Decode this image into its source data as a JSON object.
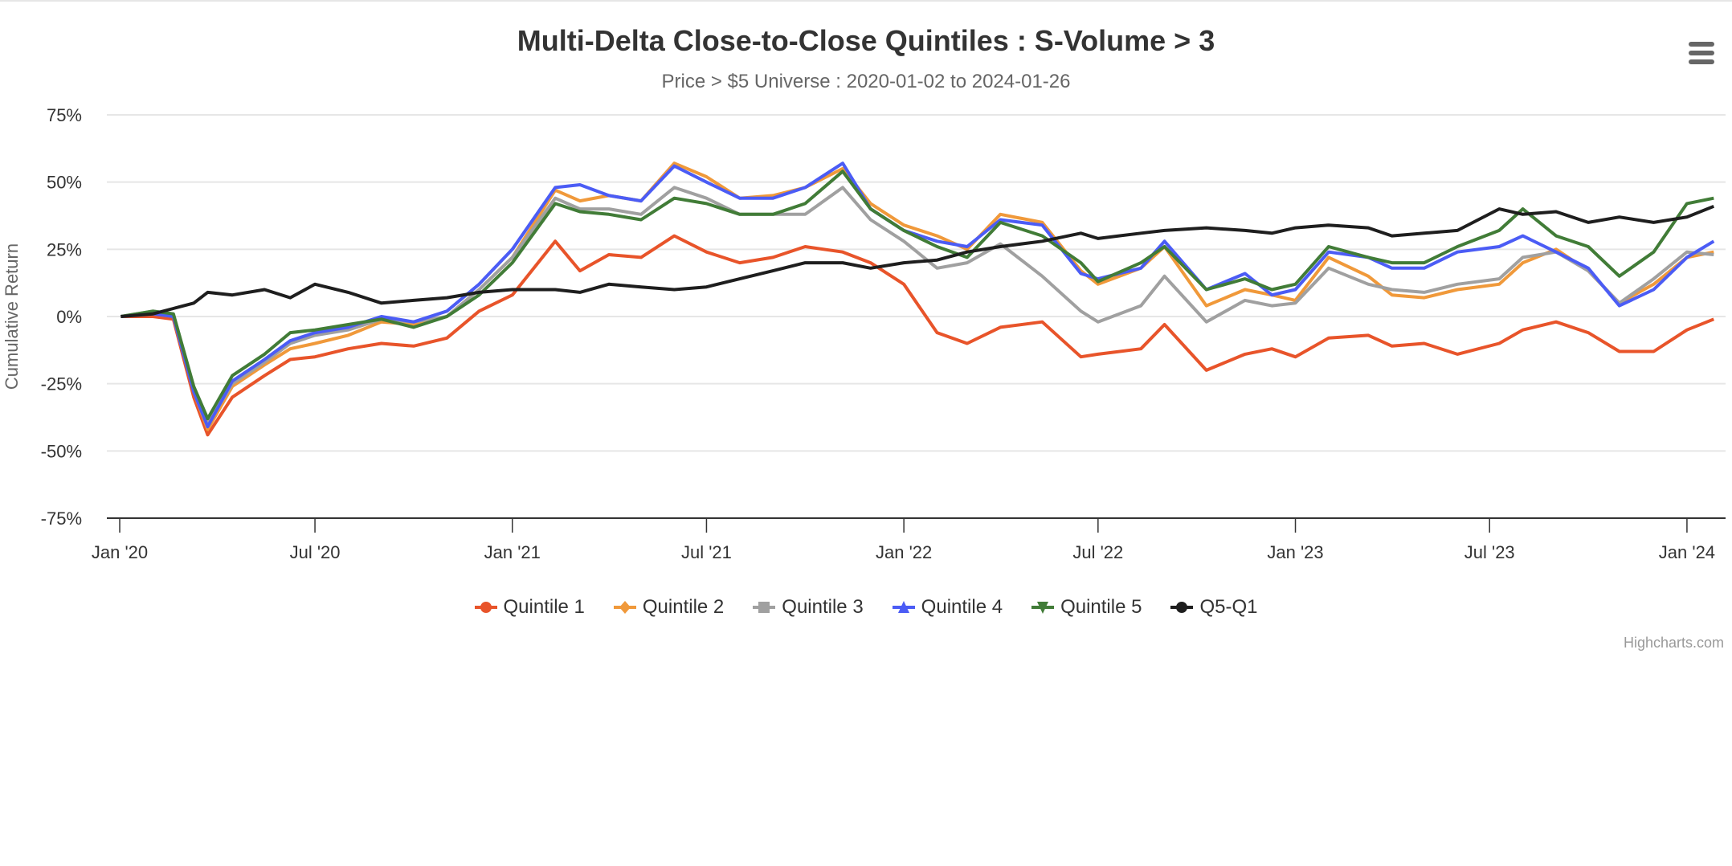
{
  "chart_data": {
    "type": "line",
    "title": "Multi-Delta Close-to-Close Quintiles : S-Volume > 3",
    "subtitle": "Price > $5 Universe : 2020-01-02 to 2024-01-26",
    "xlabel": "",
    "ylabel": "Cumulative Return",
    "ylim": [
      -75,
      75
    ],
    "yticks": [
      "75%",
      "50%",
      "25%",
      "0%",
      "-25%",
      "-50%",
      "-75%"
    ],
    "ytick_values": [
      75,
      50,
      25,
      0,
      -25,
      -50,
      -75
    ],
    "xticks": [
      "Jan '20",
      "Jul '20",
      "Jan '21",
      "Jul '21",
      "Jan '22",
      "Jul '22",
      "Jan '23",
      "Jul '23",
      "Jan '24"
    ],
    "xtick_dates": [
      "2020-01-01",
      "2020-07-01",
      "2021-01-01",
      "2021-07-01",
      "2022-01-01",
      "2022-07-01",
      "2023-01-01",
      "2023-07-01",
      "2024-01-01"
    ],
    "xlim": [
      "2019-12-20",
      "2024-02-06"
    ],
    "grid": true,
    "legend": "bottom-center",
    "x": [
      "2020-01-02",
      "2020-02-01",
      "2020-02-20",
      "2020-03-10",
      "2020-03-23",
      "2020-04-15",
      "2020-05-15",
      "2020-06-08",
      "2020-07-01",
      "2020-08-01",
      "2020-09-01",
      "2020-10-01",
      "2020-11-01",
      "2020-12-01",
      "2021-01-01",
      "2021-02-10",
      "2021-03-05",
      "2021-04-01",
      "2021-05-01",
      "2021-06-01",
      "2021-07-01",
      "2021-08-01",
      "2021-09-01",
      "2021-10-01",
      "2021-11-05",
      "2021-12-01",
      "2022-01-01",
      "2022-02-01",
      "2022-03-01",
      "2022-04-01",
      "2022-05-10",
      "2022-06-15",
      "2022-07-01",
      "2022-08-10",
      "2022-09-01",
      "2022-10-10",
      "2022-11-15",
      "2022-12-10",
      "2023-01-01",
      "2023-02-01",
      "2023-03-10",
      "2023-04-01",
      "2023-05-01",
      "2023-06-01",
      "2023-07-10",
      "2023-08-01",
      "2023-09-01",
      "2023-10-01",
      "2023-10-30",
      "2023-12-01",
      "2024-01-01",
      "2024-01-26"
    ],
    "series": [
      {
        "name": "Quintile 1",
        "color": "#e8542a",
        "values": [
          0,
          0,
          -1,
          -30,
          -44,
          -30,
          -22,
          -16,
          -15,
          -12,
          -10,
          -11,
          -8,
          2,
          8,
          28,
          17,
          23,
          22,
          30,
          24,
          20,
          22,
          26,
          24,
          20,
          12,
          -6,
          -10,
          -4,
          -2,
          -15,
          -14,
          -12,
          -3,
          -20,
          -14,
          -12,
          -15,
          -8,
          -7,
          -11,
          -10,
          -14,
          -10,
          -5,
          -2,
          -6,
          -13,
          -13,
          -5,
          -1
        ]
      },
      {
        "name": "Quintile 2",
        "color": "#f0993a",
        "values": [
          0,
          1,
          0,
          -28,
          -42,
          -26,
          -18,
          -12,
          -10,
          -7,
          -2,
          -3,
          0,
          10,
          22,
          47,
          43,
          45,
          43,
          57,
          52,
          44,
          45,
          48,
          55,
          42,
          34,
          30,
          25,
          38,
          35,
          17,
          12,
          18,
          26,
          4,
          10,
          8,
          6,
          22,
          15,
          8,
          7,
          10,
          12,
          20,
          25,
          17,
          5,
          12,
          22,
          24
        ]
      },
      {
        "name": "Quintile 3",
        "color": "#a0a0a0",
        "values": [
          0,
          2,
          1,
          -27,
          -40,
          -25,
          -17,
          -10,
          -7,
          -5,
          -1,
          -2,
          0,
          10,
          22,
          44,
          40,
          40,
          38,
          48,
          44,
          38,
          38,
          38,
          48,
          36,
          28,
          18,
          20,
          27,
          15,
          2,
          -2,
          4,
          15,
          -2,
          6,
          4,
          5,
          18,
          12,
          10,
          9,
          12,
          14,
          22,
          24,
          17,
          5,
          14,
          24,
          23
        ]
      },
      {
        "name": "Quintile 4",
        "color": "#4b5cf5",
        "values": [
          0,
          1,
          0,
          -28,
          -41,
          -24,
          -16,
          -9,
          -6,
          -4,
          0,
          -2,
          2,
          12,
          25,
          48,
          49,
          45,
          43,
          56,
          50,
          44,
          44,
          48,
          57,
          40,
          32,
          28,
          26,
          36,
          34,
          16,
          14,
          18,
          28,
          10,
          16,
          8,
          10,
          24,
          22,
          18,
          18,
          24,
          26,
          30,
          24,
          18,
          4,
          10,
          22,
          28
        ]
      },
      {
        "name": "Quintile 5",
        "color": "#417c37",
        "values": [
          0,
          2,
          1,
          -26,
          -38,
          -22,
          -14,
          -6,
          -5,
          -3,
          -1,
          -4,
          0,
          8,
          20,
          42,
          39,
          38,
          36,
          44,
          42,
          38,
          38,
          42,
          54,
          40,
          32,
          26,
          22,
          35,
          30,
          20,
          13,
          20,
          26,
          10,
          14,
          10,
          12,
          26,
          22,
          20,
          20,
          26,
          32,
          40,
          30,
          26,
          15,
          24,
          42,
          44
        ]
      },
      {
        "name": "Q5-Q1",
        "color": "#1e1e1e",
        "values": [
          0,
          1,
          3,
          5,
          9,
          8,
          10,
          7,
          12,
          9,
          5,
          6,
          7,
          9,
          10,
          10,
          9,
          12,
          11,
          10,
          11,
          14,
          17,
          20,
          20,
          18,
          20,
          21,
          24,
          26,
          28,
          31,
          29,
          31,
          32,
          33,
          32,
          31,
          33,
          34,
          33,
          30,
          31,
          32,
          40,
          38,
          39,
          35,
          37,
          35,
          37,
          41
        ]
      }
    ]
  },
  "legend_items": [
    "Quintile 1",
    "Quintile 2",
    "Quintile 3",
    "Quintile 4",
    "Quintile 5",
    "Q5-Q1"
  ],
  "legend_markers": [
    "circle",
    "diamond",
    "square",
    "triangle",
    "triangle-down",
    "circle"
  ],
  "menu": {
    "icon": "hamburger-menu-icon"
  },
  "credits": "Highcharts.com"
}
